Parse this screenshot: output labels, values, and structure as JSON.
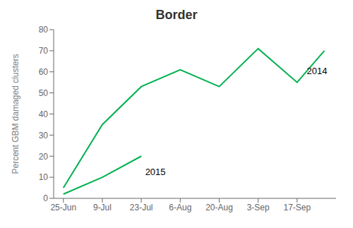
{
  "chart_data": {
    "type": "line",
    "title": "Border",
    "ylabel": "Percent GBM damaged clusters",
    "xlim": [
      -0.25,
      7.0
    ],
    "xticks": [
      {
        "value": 0,
        "label": "25-Jun"
      },
      {
        "value": 1,
        "label": "9-Jul"
      },
      {
        "value": 2,
        "label": "23-Jul"
      },
      {
        "value": 3,
        "label": "6-Aug"
      },
      {
        "value": 4,
        "label": "20-Aug"
      },
      {
        "value": 5,
        "label": "3-Sep"
      },
      {
        "value": 6,
        "label": "17-Sep"
      }
    ],
    "ylim": [
      0,
      80
    ],
    "yticks": [
      0,
      10,
      20,
      30,
      40,
      50,
      60,
      70,
      80
    ],
    "grid": false,
    "series": [
      {
        "name": "2014",
        "color": "#00b050",
        "x": [
          0,
          1,
          2,
          3,
          4,
          5,
          6,
          6.7
        ],
        "values": [
          5,
          35,
          53,
          61,
          53,
          71,
          55,
          70
        ]
      },
      {
        "name": "2015",
        "color": "#00b050",
        "x": [
          0,
          1,
          2
        ],
        "values": [
          2,
          10,
          20
        ]
      }
    ],
    "annotations": [
      {
        "text": "2014",
        "x": 6.25,
        "y": 59
      },
      {
        "text": "2015",
        "x": 2.1,
        "y": 11
      }
    ]
  }
}
